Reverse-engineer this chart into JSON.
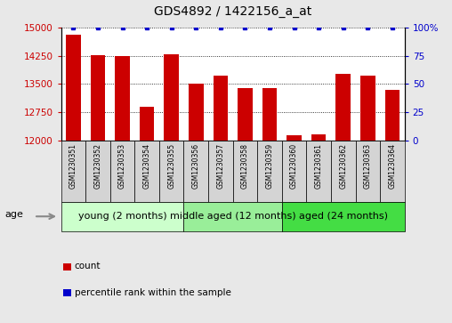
{
  "title": "GDS4892 / 1422156_a_at",
  "samples": [
    "GSM1230351",
    "GSM1230352",
    "GSM1230353",
    "GSM1230354",
    "GSM1230355",
    "GSM1230356",
    "GSM1230357",
    "GSM1230358",
    "GSM1230359",
    "GSM1230360",
    "GSM1230361",
    "GSM1230362",
    "GSM1230363",
    "GSM1230364"
  ],
  "counts": [
    14800,
    14270,
    14230,
    12900,
    14280,
    13520,
    13720,
    13380,
    13390,
    12140,
    12170,
    13780,
    13730,
    13340
  ],
  "percentiles": [
    100,
    100,
    100,
    100,
    100,
    100,
    100,
    100,
    100,
    100,
    100,
    100,
    100,
    100
  ],
  "bar_color": "#cc0000",
  "dot_color": "#0000cc",
  "ylim_left": [
    12000,
    15000
  ],
  "ylim_right": [
    0,
    100
  ],
  "yticks_left": [
    12000,
    12750,
    13500,
    14250,
    15000
  ],
  "yticks_right": [
    0,
    25,
    50,
    75,
    100
  ],
  "groups": [
    {
      "label": "young (2 months)",
      "start": 0,
      "end": 5,
      "color": "#ccffcc"
    },
    {
      "label": "middle aged (12 months)",
      "start": 5,
      "end": 9,
      "color": "#99ee99"
    },
    {
      "label": "aged (24 months)",
      "start": 9,
      "end": 14,
      "color": "#44dd44"
    }
  ],
  "age_label": "age",
  "legend_count_label": "count",
  "legend_percentile_label": "percentile rank within the sample",
  "fig_bg_color": "#e8e8e8",
  "plot_bg_color": "#ffffff",
  "sample_box_color": "#d4d4d4",
  "title_fontsize": 10,
  "tick_fontsize": 7.5,
  "sample_fontsize": 5.5,
  "group_label_fontsize": 8,
  "legend_fontsize": 7.5
}
